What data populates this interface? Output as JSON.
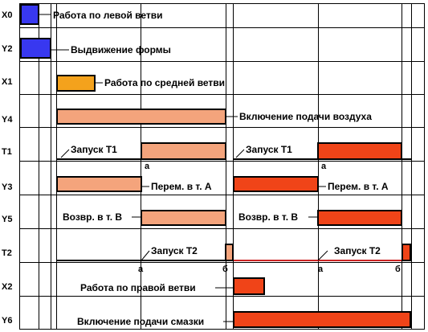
{
  "colors": {
    "blue": "#3838f0",
    "orange": "#f4a21c",
    "salmon": "#f4a47c",
    "red": "#f04418",
    "grid": "#000000",
    "timeline": "#cc2222"
  },
  "rows": [
    {
      "signal": "X0"
    },
    {
      "signal": "Y2"
    },
    {
      "signal": "X1"
    },
    {
      "signal": "Y4"
    },
    {
      "signal": "T1"
    },
    {
      "signal": "Y3"
    },
    {
      "signal": "Y5"
    },
    {
      "signal": "T2"
    },
    {
      "signal": "X2"
    },
    {
      "signal": "Y6"
    }
  ],
  "notes": {
    "x0": "Работа по левой ветви",
    "y2": "Выдвижение формы",
    "x1": "Работа по средней ветви",
    "y4": "Включение подачи воздуха",
    "t1_start_1": "Запуск T1",
    "t1_start_2": "Запуск T1",
    "y3_move_1": "Перем. в т. А",
    "y3_move_2": "Перем. в т. А",
    "y5_return_1": "Возвр. в т. В",
    "y5_return_2": "Возвр. в т. В",
    "t2_start_1": "Запуск T2",
    "t2_start_2": "Запуск T2",
    "x2": "Работа по правой ветви",
    "y6": "Включение подачи смазки"
  },
  "marks": {
    "a": "а",
    "b": "б"
  }
}
